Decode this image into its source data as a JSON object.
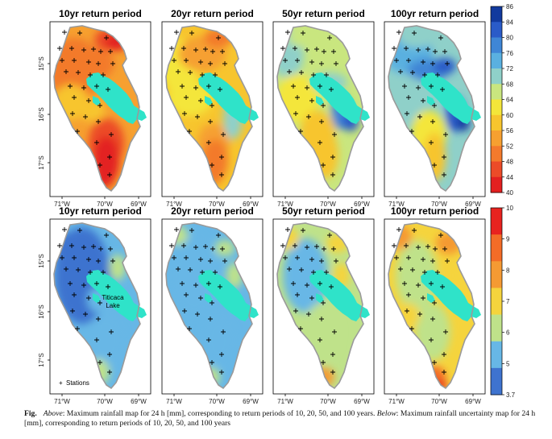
{
  "rows": [
    {
      "variable": "rainfall",
      "panels": [
        {
          "title": "10yr return period"
        },
        {
          "title": "20yr return period"
        },
        {
          "title": "50yr return period"
        },
        {
          "title": "100yr return period"
        }
      ],
      "colorbar": {
        "labels": [
          "86",
          "84",
          "80",
          "76",
          "72",
          "68",
          "64",
          "60",
          "56",
          "52",
          "48",
          "44",
          "40"
        ],
        "colors_top_to_bottom": [
          "#123a9e",
          "#2a5bc8",
          "#3f86d6",
          "#5ab0e0",
          "#8fd0c9",
          "#c9e67f",
          "#f4e63a",
          "#f7c52e",
          "#f6a030",
          "#f37a2c",
          "#ec4b28",
          "#e32020"
        ]
      }
    },
    {
      "variable": "uncertainty",
      "panels": [
        {
          "title": "10yr return period"
        },
        {
          "title": "20yr return period"
        },
        {
          "title": "50yr return period"
        },
        {
          "title": "100yr return period"
        }
      ],
      "colorbar": {
        "labels": [
          "10",
          "9",
          "8",
          "7",
          "6",
          "5",
          "3.7"
        ],
        "colors_top_to_bottom": [
          "#e8231f",
          "#f36c27",
          "#f59a33",
          "#f5d43d",
          "#bfe28a",
          "#67b7e6",
          "#3e73cf"
        ]
      }
    }
  ],
  "axes": {
    "x_ticks": [
      "71°W",
      "70°W",
      "69°W"
    ],
    "y_ticks": [
      "15°S",
      "16°S",
      "17°S"
    ]
  },
  "lake_label": {
    "line1": "Titicaca",
    "line2": "Lake"
  },
  "legend": {
    "symbol": "+",
    "label": "Stations"
  },
  "caption": {
    "prefix": "Fig.",
    "above_label": "Above",
    "above_text": ": Maximum rainfall map for 24 h [mm], corresponding to return periods of 10, 20, 50, and 100 years.",
    "below_label": "Below",
    "below_text": ": Maximum rainfall uncertainty map for 24 h [mm], corresponding to return periods of 10, 20, 50, and 100 years"
  },
  "colors": {
    "lake": "#2fe3c9",
    "outline": "#9a9a9a",
    "background": "#ffffff"
  }
}
